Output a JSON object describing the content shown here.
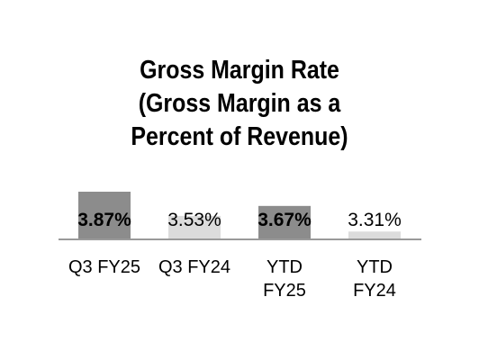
{
  "title_lines": [
    "Gross Margin Rate",
    "(Gross Margin as a",
    "Percent of Revenue)"
  ],
  "colors": {
    "dark_bar": "#8c8c8c",
    "light_bar": "#dcdcdc",
    "baseline": "#9a9a9a",
    "text": "#000000"
  },
  "chart_data": {
    "type": "bar",
    "categories": [
      [
        "Q3 FY25"
      ],
      [
        "Q3 FY24"
      ],
      [
        "YTD",
        "FY25"
      ],
      [
        "YTD",
        "FY24"
      ]
    ],
    "values": [
      3.87,
      3.53,
      3.67,
      3.31
    ],
    "labels": [
      "3.87%",
      "3.53%",
      "3.67%",
      "3.31%"
    ],
    "emphasis": [
      true,
      false,
      true,
      false
    ],
    "ylim": [
      3.2,
      3.9
    ]
  }
}
